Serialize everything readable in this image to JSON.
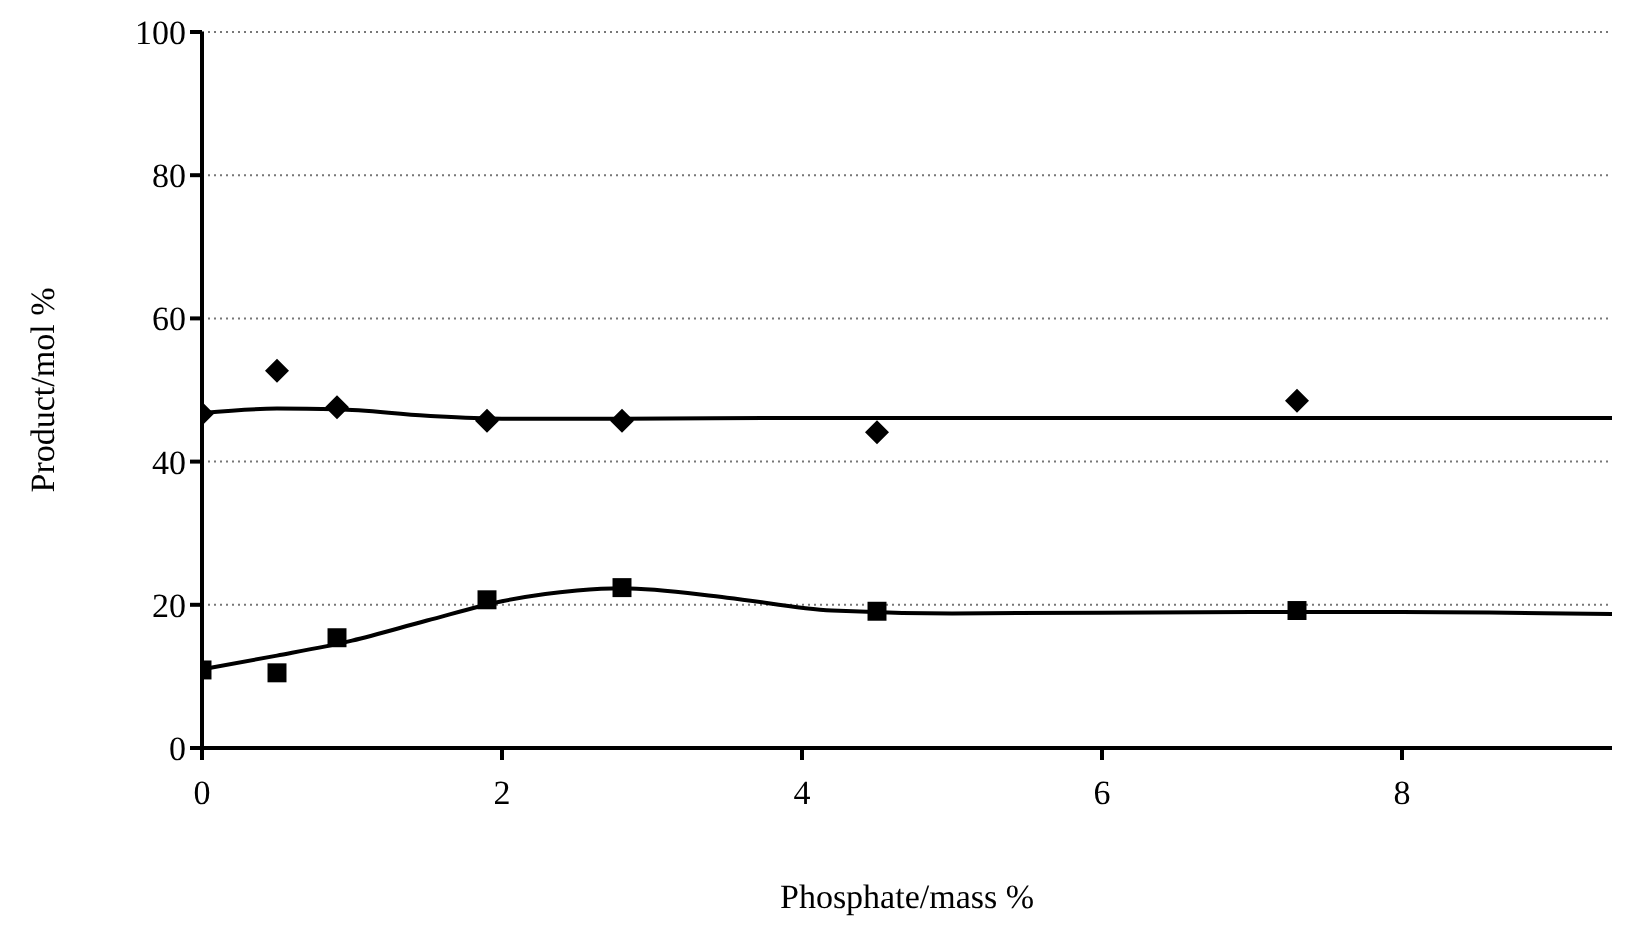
{
  "chart_data": {
    "type": "scatter",
    "xlabel": "Phosphate/mass %",
    "ylabel": "Product/mol %",
    "xlim": [
      0,
      9.4
    ],
    "xticks": [
      0,
      2,
      4,
      6,
      8
    ],
    "ylim": [
      0,
      100
    ],
    "yticks": [
      0,
      20,
      40,
      60,
      80,
      100
    ],
    "grid": "y",
    "series": [
      {
        "type": "scatter",
        "marker": "diamond",
        "color": "#000000",
        "x": [
          0,
          0.5,
          0.9,
          1.9,
          2.8,
          4.5,
          7.3
        ],
        "values": [
          46.7,
          52.7,
          47.6,
          45.7,
          45.7,
          44.1,
          48.5
        ]
      },
      {
        "type": "scatter",
        "marker": "square",
        "color": "#000000",
        "x": [
          0,
          0.5,
          0.9,
          1.9,
          2.8,
          4.5,
          7.3
        ],
        "values": [
          10.9,
          10.5,
          15.4,
          20.7,
          22.4,
          19.1,
          19.2
        ]
      },
      {
        "type": "line",
        "marker": "none",
        "color": "#000000",
        "x": [
          0,
          0.5,
          0.9,
          1.5,
          2,
          2.8,
          4,
          6,
          8,
          9.4
        ],
        "values": [
          46.8,
          47.4,
          47.3,
          46.4,
          46,
          46,
          46.1,
          46.1,
          46.1,
          46.1
        ]
      },
      {
        "type": "line",
        "marker": "none",
        "color": "#000000",
        "x": [
          0,
          0.5,
          1,
          1.5,
          2,
          2.5,
          2.8,
          3.5,
          4.2,
          5,
          7,
          8,
          9.4
        ],
        "values": [
          11,
          12.9,
          15,
          17.8,
          20.5,
          22,
          22.3,
          21,
          19.2,
          18.8,
          19,
          19,
          18.7
        ]
      }
    ]
  }
}
